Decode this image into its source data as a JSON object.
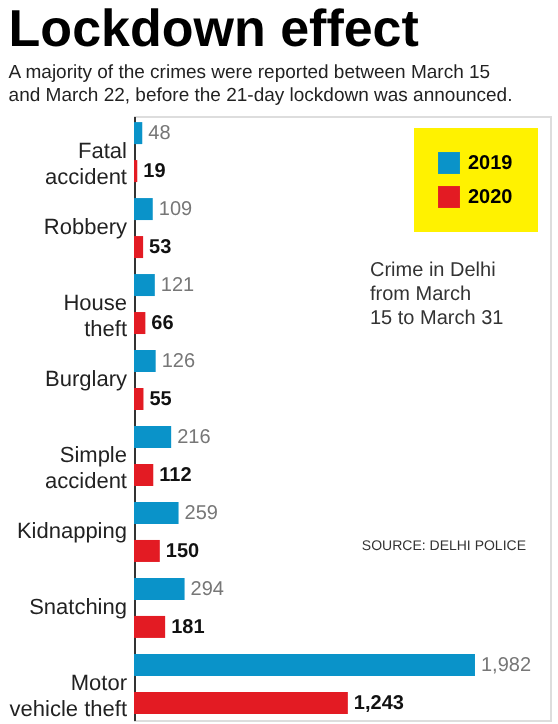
{
  "chart_data": {
    "type": "bar",
    "orientation": "horizontal",
    "title": "Lockdown effect",
    "subtitle": "A majority of the crimes were reported between March 15\nand March 22, before the 21-day lockdown was announced.",
    "categories": [
      "Fatal\naccident",
      "Robbery",
      "House\ntheft",
      "Burglary",
      "Simple\naccident",
      "Kidnapping",
      "Snatching",
      "Motor\nvehicle theft"
    ],
    "series": [
      {
        "name": "2019",
        "color": "#0a93c9",
        "values": [
          48,
          109,
          121,
          126,
          216,
          259,
          294,
          1982
        ],
        "value_labels": [
          "48",
          "109",
          "121",
          "126",
          "216",
          "259",
          "294",
          "1,982"
        ]
      },
      {
        "name": "2020",
        "color": "#e31b23",
        "values": [
          19,
          53,
          66,
          55,
          112,
          150,
          181,
          1243
        ],
        "value_labels": [
          "19",
          "53",
          "66",
          "55",
          "112",
          "150",
          "181",
          "1,243"
        ]
      }
    ],
    "legend": "top right",
    "grid": false,
    "annotations": [
      "Crime in Delhi\nfrom March\n15 to March 31",
      "SOURCE: DELHI POLICE"
    ]
  }
}
